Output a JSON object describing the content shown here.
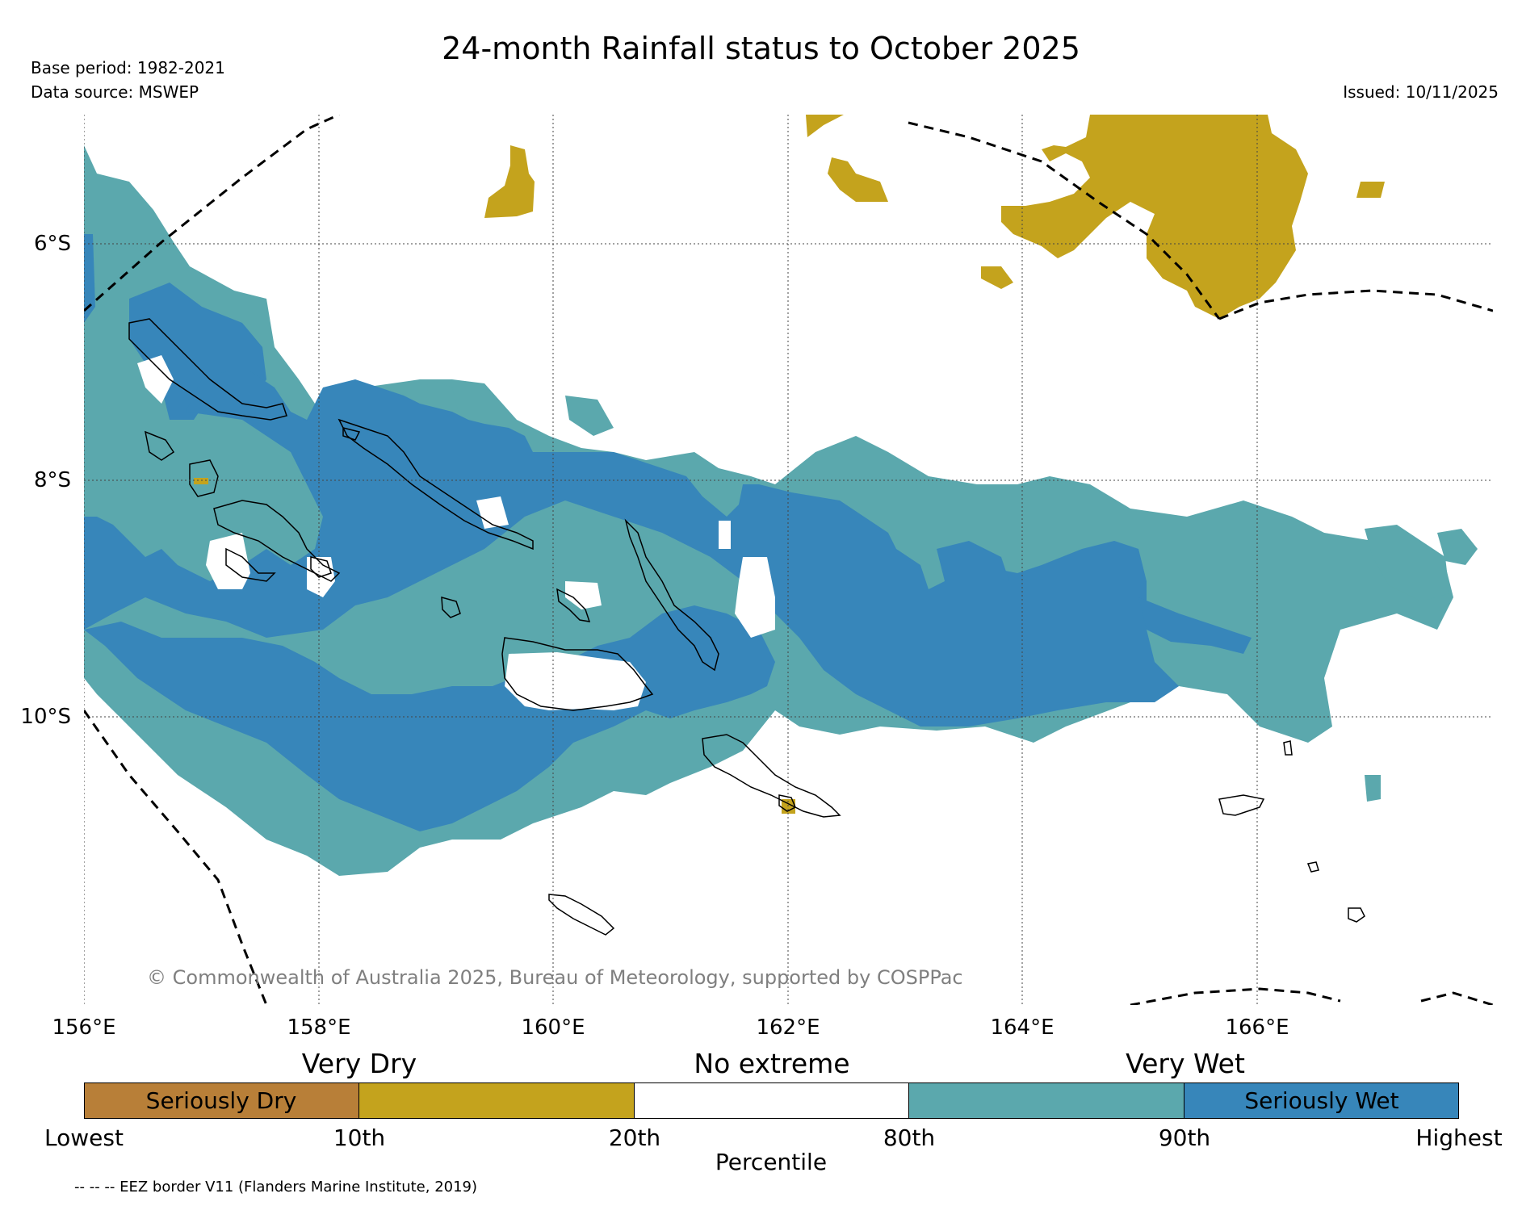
{
  "title": "24-month Rainfall status to October 2025",
  "meta": {
    "base_period": "Base period: 1982-2021",
    "data_source": "Data source: MSWEP",
    "issued": "Issued: 10/11/2025"
  },
  "map": {
    "lat_labels": [
      "6°S",
      "8°S",
      "10°S"
    ],
    "lon_labels": [
      "156°E",
      "158°E",
      "160°E",
      "162°E",
      "164°E",
      "166°E"
    ],
    "copyright": "© Commonwealth of Australia 2025, Bureau of Meteorology, supported by COSPPac"
  },
  "legend": {
    "category_heads": [
      "Very Dry",
      "No extreme",
      "Very Wet"
    ],
    "boxes": [
      {
        "label": "Seriously Dry",
        "color": "#b87f38"
      },
      {
        "label": "",
        "color": "#c4a31d"
      },
      {
        "label": "",
        "color": "#ffffff"
      },
      {
        "label": "",
        "color": "#5ba8ad"
      },
      {
        "label": "Seriously Wet",
        "color": "#3786ba"
      }
    ],
    "ticks": [
      "Lowest",
      "10th",
      "20th",
      "80th",
      "90th",
      "Highest"
    ],
    "axis_label": "Percentile",
    "eez_note": "-- -- -- EEZ border V11 (Flanders Marine Institute, 2019)"
  },
  "colors": {
    "very_wet": "#5ba8ad",
    "seriously_wet": "#3786ba",
    "very_dry": "#c4a31d",
    "seriously_dry": "#b87f38"
  }
}
